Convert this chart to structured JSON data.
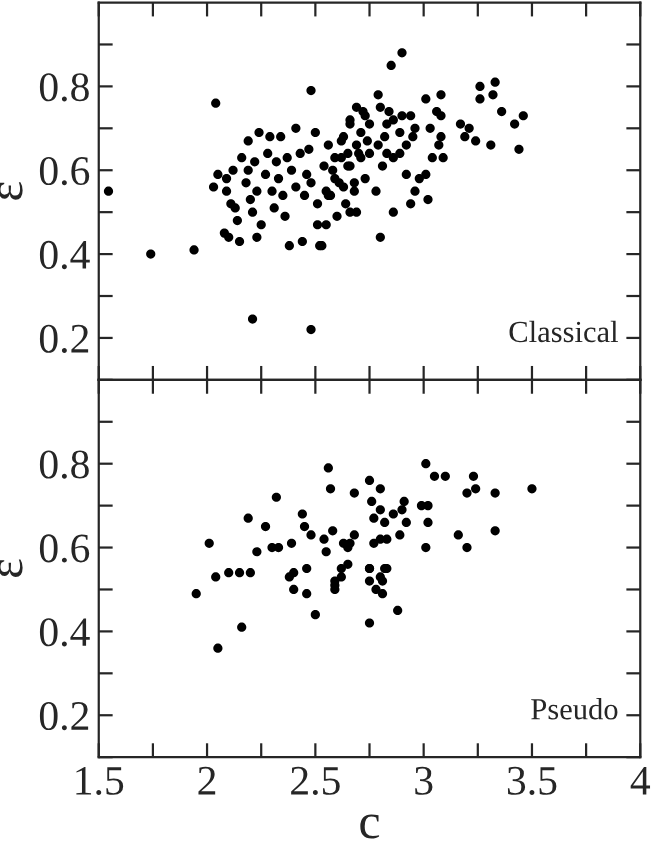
{
  "chart_data": [
    {
      "type": "scatter",
      "ylabel": "ε",
      "annotations": [
        "Classical"
      ],
      "marker": "circle",
      "tick_labels": "y",
      "grid": false,
      "xlim": [
        1.5,
        4
      ],
      "xticks": [
        {
          "value": 1.5,
          "label": null
        },
        {
          "value": 1.75,
          "label": null
        },
        {
          "value": 2,
          "label": null
        },
        {
          "value": 2.25,
          "label": null
        },
        {
          "value": 2.5,
          "label": null
        },
        {
          "value": 2.75,
          "label": null
        },
        {
          "value": 3,
          "label": null
        },
        {
          "value": 3.25,
          "label": null
        },
        {
          "value": 3.5,
          "label": null
        },
        {
          "value": 3.75,
          "label": null
        },
        {
          "value": 4,
          "label": null
        }
      ],
      "ylim": [
        0.1,
        1.0
      ],
      "yticks": [
        {
          "value": 0.1,
          "label": null
        },
        {
          "value": 0.2,
          "label": "0.2"
        },
        {
          "value": 0.3,
          "label": null
        },
        {
          "value": 0.4,
          "label": "0.4"
        },
        {
          "value": 0.5,
          "label": null
        },
        {
          "value": 0.6,
          "label": "0.6"
        },
        {
          "value": 0.7,
          "label": null
        },
        {
          "value": 0.8,
          "label": "0.8"
        },
        {
          "value": 0.9,
          "label": null
        }
      ],
      "series": [
        {
          "color": "#000000",
          "x": [
            1.545,
            1.74,
            1.94,
            2.04,
            2.48,
            2.21,
            2.48,
            2.03,
            2.05,
            2.08,
            2.09,
            2.09,
            2.1,
            2.11,
            2.12,
            2.13,
            2.14,
            2.15,
            2.16,
            2.18,
            2.19,
            2.19,
            2.2,
            2.21,
            2.22,
            2.23,
            2.23,
            2.24,
            2.25,
            2.27,
            2.28,
            2.29,
            2.3,
            2.31,
            2.32,
            2.33,
            2.34,
            2.35,
            2.36,
            2.37,
            2.38,
            2.39,
            2.41,
            2.41,
            2.43,
            2.44,
            2.45,
            2.46,
            2.47,
            2.48,
            2.5,
            2.51,
            2.51,
            2.53,
            2.54,
            2.55,
            2.56,
            2.57,
            2.58,
            2.6,
            2.61,
            2.62,
            2.63,
            2.64,
            2.65,
            2.66,
            2.68,
            2.69,
            2.7,
            2.72,
            2.73,
            2.9,
            2.85,
            2.79,
            3.26,
            3.33,
            3.26,
            3.32,
            3.08,
            3.01,
            3.36,
            3.46,
            3.42,
            3.44,
            3.31,
            3.24,
            3.19,
            3.21,
            3.17,
            3.08,
            3.06,
            3.03,
            3.08,
            3.07,
            3.09,
            3.04,
            3.01,
            2.98,
            2.96,
            3.02,
            2.94,
            2.86,
            2.8,
            2.78,
            2.92,
            2.94,
            2.9,
            2.86,
            2.83,
            2.82,
            2.83,
            2.86,
            2.89,
            2.92,
            2.95,
            2.96,
            2.75,
            2.73,
            2.69,
            2.66,
            2.71,
            2.74,
            2.69,
            2.65,
            2.62,
            2.59,
            2.66,
            2.71,
            2.75,
            2.79,
            2.59,
            2.63,
            2.66,
            2.55,
            2.52,
            2.56,
            2.68,
            2.81,
            2.89,
            2.8,
            2.84
          ],
          "values": [
            0.55,
            0.4,
            0.41,
            0.76,
            0.79,
            0.245,
            0.22,
            0.56,
            0.59,
            0.45,
            0.58,
            0.55,
            0.44,
            0.52,
            0.6,
            0.51,
            0.48,
            0.43,
            0.63,
            0.57,
            0.6,
            0.67,
            0.53,
            0.5,
            0.62,
            0.55,
            0.44,
            0.69,
            0.47,
            0.59,
            0.64,
            0.68,
            0.55,
            0.51,
            0.62,
            0.58,
            0.68,
            0.54,
            0.49,
            0.63,
            0.42,
            0.6,
            0.56,
            0.7,
            0.64,
            0.43,
            0.54,
            0.59,
            0.65,
            0.57,
            0.69,
            0.52,
            0.47,
            0.42,
            0.61,
            0.55,
            0.66,
            0.54,
            0.6,
            0.49,
            0.57,
            0.63,
            0.68,
            0.52,
            0.61,
            0.71,
            0.55,
            0.5,
            0.64,
            0.74,
            0.58,
            0.88,
            0.85,
            0.78,
            0.8,
            0.81,
            0.77,
            0.78,
            0.78,
            0.77,
            0.74,
            0.73,
            0.71,
            0.65,
            0.66,
            0.67,
            0.68,
            0.7,
            0.71,
            0.73,
            0.74,
            0.7,
            0.68,
            0.66,
            0.63,
            0.63,
            0.59,
            0.58,
            0.55,
            0.53,
            0.52,
            0.5,
            0.44,
            0.55,
            0.59,
            0.73,
            0.73,
            0.72,
            0.71,
            0.68,
            0.64,
            0.63,
            0.64,
            0.66,
            0.68,
            0.7,
            0.71,
            0.73,
            0.75,
            0.72,
            0.69,
            0.67,
            0.66,
            0.64,
            0.67,
            0.63,
            0.61,
            0.63,
            0.64,
            0.66,
            0.58,
            0.56,
            0.5,
            0.47,
            0.42,
            0.54,
            0.57,
            0.61,
            0.69,
            0.75,
            0.74
          ]
        }
      ]
    },
    {
      "type": "scatter",
      "xlabel": "c",
      "ylabel": "ε",
      "annotations": [
        "Pseudo"
      ],
      "marker": "circle",
      "grid": false,
      "xlim": [
        1.5,
        4
      ],
      "xticks": [
        {
          "value": 1.5,
          "label": "1.5"
        },
        {
          "value": 1.75,
          "label": null
        },
        {
          "value": 2,
          "label": "2"
        },
        {
          "value": 2.25,
          "label": null
        },
        {
          "value": 2.5,
          "label": "2.5"
        },
        {
          "value": 2.75,
          "label": null
        },
        {
          "value": 3,
          "label": "3"
        },
        {
          "value": 3.25,
          "label": null
        },
        {
          "value": 3.5,
          "label": "3.5"
        },
        {
          "value": 3.75,
          "label": null
        },
        {
          "value": 4,
          "label": "4"
        }
      ],
      "ylim": [
        0.1,
        1.0
      ],
      "yticks": [
        {
          "value": 0.1,
          "label": null
        },
        {
          "value": 0.2,
          "label": "0.2"
        },
        {
          "value": 0.3,
          "label": null
        },
        {
          "value": 0.4,
          "label": "0.4"
        },
        {
          "value": 0.5,
          "label": null
        },
        {
          "value": 0.6,
          "label": "0.6"
        },
        {
          "value": 0.7,
          "label": null
        },
        {
          "value": 0.8,
          "label": "0.8"
        },
        {
          "value": 0.9,
          "label": null
        }
      ],
      "series": [
        {
          "color": "#000000",
          "x": [
            2.01,
            2.04,
            2.1,
            2.15,
            2.2,
            2.23,
            2.19,
            2.27,
            2.32,
            2.3,
            2.33,
            2.39,
            2.38,
            2.4,
            2.44,
            2.45,
            2.46,
            2.48,
            2.54,
            2.55,
            2.56,
            2.57,
            2.59,
            2.62,
            2.63,
            2.66,
            2.68,
            2.68,
            1.95,
            2.05,
            2.16,
            2.4,
            2.46,
            2.5,
            2.59,
            3.01,
            3.05,
            3.1,
            3.23,
            3.24,
            3.2,
            3.33,
            3.5,
            3.02,
            2.99,
            2.91,
            2.9,
            2.86,
            2.82,
            2.8,
            2.75,
            2.8,
            2.76,
            2.77,
            3.02,
            2.92,
            2.89,
            2.83,
            2.8,
            2.77,
            2.65,
            2.58,
            3.01,
            3.16,
            3.2,
            3.33,
            2.83,
            2.75,
            2.65,
            2.62,
            2.8,
            2.59,
            2.75,
            2.82,
            2.81,
            2.75,
            2.78,
            2.81,
            2.88,
            2.75
          ],
          "values": [
            0.61,
            0.53,
            0.54,
            0.54,
            0.54,
            0.59,
            0.67,
            0.65,
            0.72,
            0.6,
            0.6,
            0.61,
            0.53,
            0.54,
            0.68,
            0.65,
            0.55,
            0.63,
            0.62,
            0.59,
            0.79,
            0.74,
            0.52,
            0.55,
            0.61,
            0.61,
            0.73,
            0.63,
            0.49,
            0.36,
            0.41,
            0.5,
            0.49,
            0.44,
            0.5,
            0.8,
            0.77,
            0.77,
            0.77,
            0.74,
            0.73,
            0.73,
            0.74,
            0.7,
            0.7,
            0.71,
            0.69,
            0.68,
            0.66,
            0.69,
            0.76,
            0.74,
            0.71,
            0.67,
            0.66,
            0.66,
            0.63,
            0.62,
            0.62,
            0.61,
            0.6,
            0.64,
            0.6,
            0.63,
            0.6,
            0.64,
            0.55,
            0.55,
            0.56,
            0.53,
            0.53,
            0.51,
            0.55,
            0.55,
            0.52,
            0.52,
            0.5,
            0.49,
            0.45,
            0.42
          ]
        }
      ]
    }
  ]
}
